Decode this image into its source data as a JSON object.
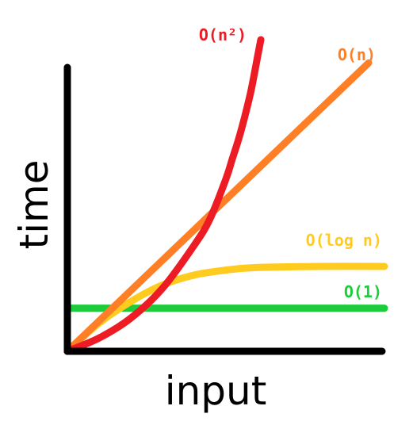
{
  "chart_data": {
    "type": "line",
    "xlabel": "input",
    "ylabel": "time",
    "axis_color": "#000000",
    "ticks": "none",
    "grid": false,
    "legend": "labels at line ends",
    "series": [
      {
        "name": "O(1)",
        "color": "#1dcc3a",
        "points": [
          [
            0,
            13
          ],
          [
            100,
            13
          ]
        ]
      },
      {
        "name": "O(log n)",
        "color": "#ffcb1f",
        "points": [
          [
            0,
            0
          ],
          [
            10,
            8.5
          ],
          [
            20,
            15
          ],
          [
            30,
            20
          ],
          [
            40,
            23
          ],
          [
            50,
            24.5
          ],
          [
            60,
            25.3
          ],
          [
            80,
            25.6
          ],
          [
            100,
            25.6
          ]
        ]
      },
      {
        "name": "O(n)",
        "color": "#ff7f27",
        "points": [
          [
            0,
            0
          ],
          [
            95,
            87
          ]
        ]
      },
      {
        "name": "O(n²)",
        "color": "#ed1c24",
        "points": [
          [
            0,
            0
          ],
          [
            10,
            4
          ],
          [
            20,
            10
          ],
          [
            30,
            19
          ],
          [
            40,
            32
          ],
          [
            45,
            40
          ],
          [
            50,
            52
          ],
          [
            52,
            58
          ],
          [
            54,
            64
          ],
          [
            56,
            71
          ],
          [
            58,
            79
          ],
          [
            60,
            89
          ],
          [
            61,
            94
          ]
        ]
      }
    ]
  }
}
